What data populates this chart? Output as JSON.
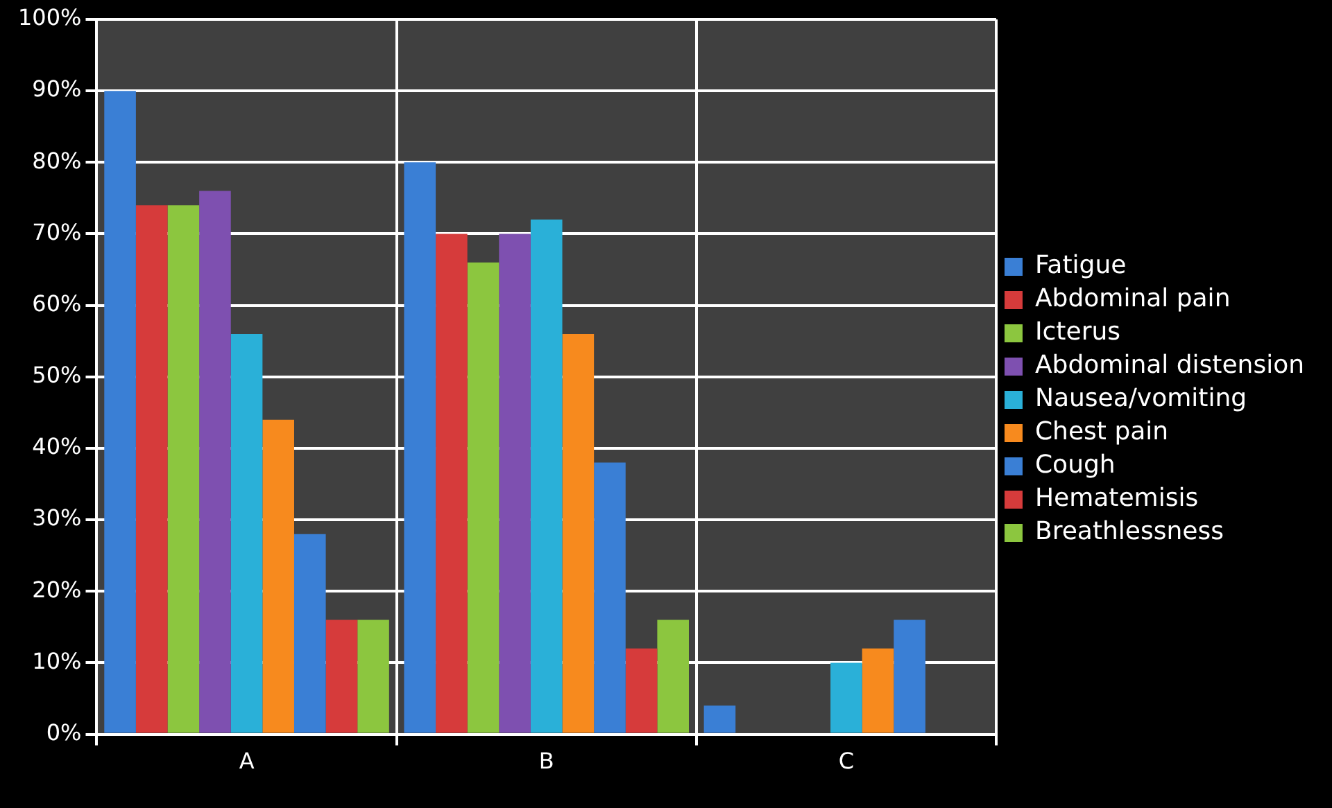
{
  "chart_data": {
    "type": "bar",
    "categories": [
      "A",
      "B",
      "C"
    ],
    "series": [
      {
        "name": "Fatigue",
        "color": "#3a7fd5",
        "values": [
          90,
          80,
          4
        ]
      },
      {
        "name": "Abdominal pain",
        "color": "#d63b3b",
        "values": [
          74,
          70,
          0
        ]
      },
      {
        "name": "Icterus",
        "color": "#8cc63f",
        "values": [
          74,
          66,
          0
        ]
      },
      {
        "name": "Abdominal distension",
        "color": "#7e50b0",
        "values": [
          76,
          70,
          0
        ]
      },
      {
        "name": "Nausea/vomiting",
        "color": "#2ab0d8",
        "values": [
          56,
          72,
          10
        ]
      },
      {
        "name": "Chest pain",
        "color": "#f78a1e",
        "values": [
          44,
          56,
          12
        ]
      },
      {
        "name": "Cough",
        "color": "#3a7fd5",
        "values": [
          28,
          38,
          16
        ]
      },
      {
        "name": "Hematemisis",
        "color": "#d63b3b",
        "values": [
          16,
          12,
          0
        ]
      },
      {
        "name": "Breathlessness",
        "color": "#8cc63f",
        "values": [
          16,
          16,
          0
        ]
      }
    ],
    "ylim": [
      0,
      100
    ],
    "yticks": [
      {
        "value": 0,
        "label": "0%"
      },
      {
        "value": 10,
        "label": "10%"
      },
      {
        "value": 20,
        "label": "20%"
      },
      {
        "value": 30,
        "label": "30%"
      },
      {
        "value": 40,
        "label": "40%"
      },
      {
        "value": 50,
        "label": "50%"
      },
      {
        "value": 60,
        "label": "60%"
      },
      {
        "value": 70,
        "label": "70%"
      },
      {
        "value": 80,
        "label": "80%"
      },
      {
        "value": 90,
        "label": "90%"
      },
      {
        "value": 100,
        "label": "100%"
      }
    ],
    "grid": true,
    "legend": "right"
  }
}
